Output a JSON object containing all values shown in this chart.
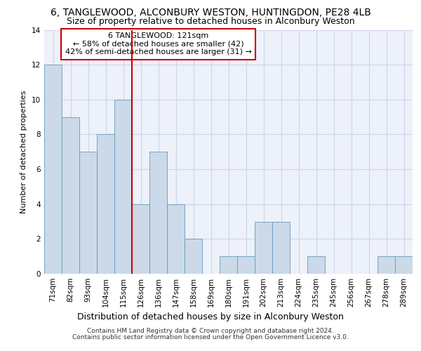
{
  "title1": "6, TANGLEWOOD, ALCONBURY WESTON, HUNTINGDON, PE28 4LB",
  "title2": "Size of property relative to detached houses in Alconbury Weston",
  "xlabel": "Distribution of detached houses by size in Alconbury Weston",
  "ylabel": "Number of detached properties",
  "categories": [
    "71sqm",
    "82sqm",
    "93sqm",
    "104sqm",
    "115sqm",
    "126sqm",
    "136sqm",
    "147sqm",
    "158sqm",
    "169sqm",
    "180sqm",
    "191sqm",
    "202sqm",
    "213sqm",
    "224sqm",
    "235sqm",
    "245sqm",
    "256sqm",
    "267sqm",
    "278sqm",
    "289sqm"
  ],
  "values": [
    12,
    9,
    7,
    8,
    10,
    4,
    7,
    4,
    2,
    0,
    1,
    1,
    3,
    3,
    0,
    1,
    0,
    0,
    0,
    1,
    1
  ],
  "bar_color": "#ccd9e8",
  "bar_edge_color": "#6699bb",
  "grid_color": "#ccd5e8",
  "background_color": "#edf1fa",
  "vline_color": "#cc0000",
  "annotation_text": "6 TANGLEWOOD: 121sqm\n← 58% of detached houses are smaller (42)\n42% of semi-detached houses are larger (31) →",
  "annotation_edge_color": "#cc0000",
  "footnote1": "Contains HM Land Registry data © Crown copyright and database right 2024.",
  "footnote2": "Contains public sector information licensed under the Open Government Licence v3.0.",
  "ylim": [
    0,
    14
  ],
  "yticks": [
    0,
    2,
    4,
    6,
    8,
    10,
    12,
    14
  ],
  "title1_fontsize": 10,
  "title2_fontsize": 9,
  "xlabel_fontsize": 9,
  "ylabel_fontsize": 8,
  "tick_fontsize": 7.5,
  "annotation_fontsize": 8,
  "footnote_fontsize": 6.5
}
